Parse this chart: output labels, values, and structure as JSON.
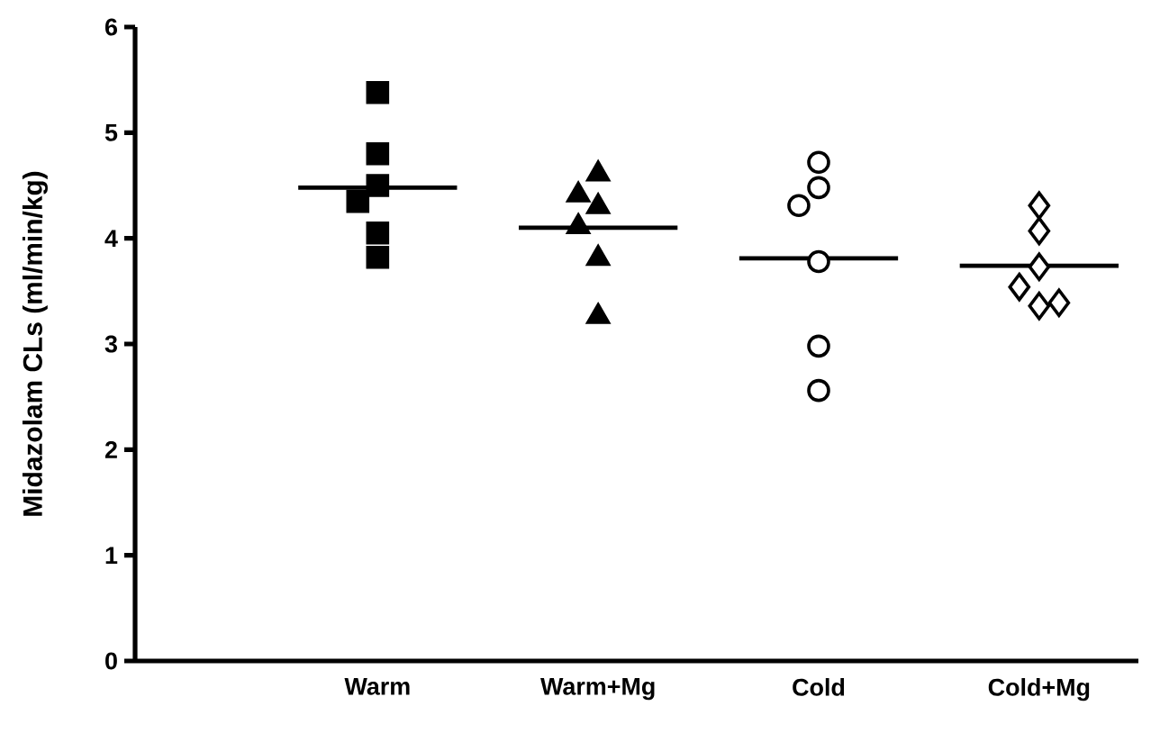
{
  "chart_data": {
    "type": "scatter",
    "ylabel": "Midazolam CLs (ml/min/kg)",
    "categories": [
      "Warm",
      "Warm+Mg",
      "Cold",
      "Cold+Mg"
    ],
    "ylim": [
      0,
      6
    ],
    "yticks": [
      0,
      1,
      2,
      3,
      4,
      5,
      6
    ],
    "series": [
      {
        "type": "scatter",
        "marker": "square",
        "color": "#000000",
        "x": [
          "Warm",
          "Warm",
          "Warm",
          "Warm",
          "Warm",
          "Warm"
        ],
        "values": [
          5.38,
          4.8,
          4.5,
          4.35,
          4.05,
          3.82
        ]
      },
      {
        "type": "scatter",
        "marker": "triangle",
        "color": "#000000",
        "x": [
          "Warm+Mg",
          "Warm+Mg",
          "Warm+Mg",
          "Warm+Mg",
          "Warm+Mg",
          "Warm+Mg"
        ],
        "values": [
          4.61,
          4.3,
          4.41,
          4.11,
          3.81,
          3.26
        ]
      },
      {
        "type": "scatter",
        "marker": "circle",
        "color": "#000000",
        "x": [
          "Cold",
          "Cold",
          "Cold",
          "Cold",
          "Cold",
          "Cold"
        ],
        "values": [
          4.72,
          4.48,
          4.31,
          3.78,
          2.98,
          2.56
        ]
      },
      {
        "type": "scatter",
        "marker": "diamond",
        "color": "#000000",
        "x": [
          "Cold+Mg",
          "Cold+Mg",
          "Cold+Mg",
          "Cold+Mg",
          "Cold+Mg",
          "Cold+Mg"
        ],
        "values": [
          4.31,
          4.07,
          3.73,
          3.54,
          3.36,
          3.39
        ]
      },
      {
        "type": "box",
        "color": "#000000",
        "boxes": [
          {
            "low": 4.48,
            "q1": 4.48,
            "median": 4.48,
            "q3": 4.48,
            "high": 4.48
          },
          {
            "low": 4.1,
            "q1": 4.1,
            "median": 4.1,
            "q3": 4.1,
            "high": 4.1
          },
          {
            "low": 3.81,
            "q1": 3.81,
            "median": 3.81,
            "q3": 3.81,
            "high": 3.81
          },
          {
            "low": 3.74,
            "q1": 3.74,
            "median": 3.74,
            "q3": 3.74,
            "high": 3.74
          }
        ]
      }
    ]
  }
}
